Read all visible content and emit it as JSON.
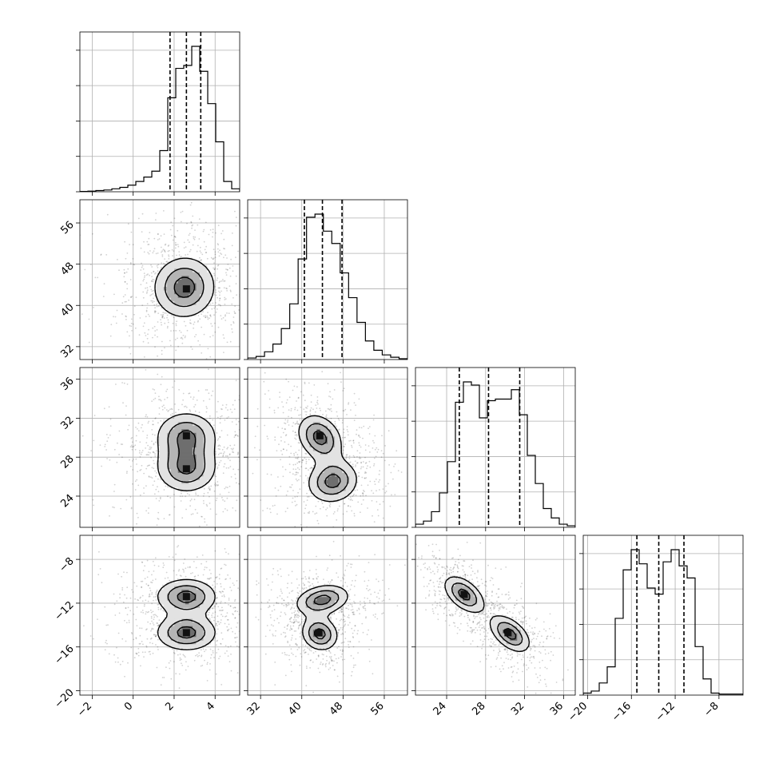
{
  "chart_data": {
    "type": "corner",
    "grid": true,
    "parameters": [
      {
        "id": "p0",
        "range": [
          -2.6,
          5.2
        ],
        "ticks": [
          -2,
          0,
          2,
          4
        ],
        "tick_labels": [
          "−2",
          "0",
          "2",
          "4"
        ],
        "median": 2.6,
        "quantiles": [
          1.8,
          2.6,
          3.3
        ],
        "hist": [
          0.002,
          0.004,
          0.008,
          0.012,
          0.02,
          0.03,
          0.045,
          0.07,
          0.1,
          0.14,
          0.28,
          0.64,
          0.84,
          0.86,
          0.99,
          0.82,
          0.6,
          0.34,
          0.07,
          0.02
        ]
      },
      {
        "id": "p1",
        "range": [
          29.5,
          60.5
        ],
        "ticks": [
          32,
          40,
          48,
          56
        ],
        "tick_labels": [
          "32",
          "40",
          "48",
          "56"
        ],
        "median": 44.0,
        "quantiles": [
          40.5,
          44.0,
          47.8
        ],
        "hist": [
          0.01,
          0.02,
          0.05,
          0.1,
          0.2,
          0.36,
          0.65,
          0.92,
          0.94,
          0.83,
          0.75,
          0.56,
          0.4,
          0.24,
          0.12,
          0.06,
          0.03,
          0.015,
          0.005
        ]
      },
      {
        "id": "p2",
        "range": [
          20.8,
          37.2
        ],
        "ticks": [
          24,
          28,
          32,
          36
        ],
        "tick_labels": [
          "24",
          "28",
          "32",
          "36"
        ],
        "median": 28.3,
        "quantiles": [
          25.3,
          28.3,
          31.5
        ],
        "hist": [
          0.02,
          0.04,
          0.1,
          0.22,
          0.42,
          0.8,
          0.93,
          0.91,
          0.7,
          0.81,
          0.82,
          0.82,
          0.88,
          0.72,
          0.46,
          0.28,
          0.12,
          0.06,
          0.02,
          0.01
        ]
      },
      {
        "id": "p3",
        "range": [
          -20.4,
          -5.8
        ],
        "ticks": [
          -20,
          -16,
          -12,
          -8
        ],
        "tick_labels": [
          "−20",
          "−16",
          "−12",
          "−8"
        ],
        "median": -13.5,
        "quantiles": [
          -15.5,
          -13.5,
          -11.2
        ],
        "hist": [
          0.01,
          0.02,
          0.06,
          0.14,
          0.38,
          0.62,
          0.72,
          0.65,
          0.53,
          0.5,
          0.66,
          0.72,
          0.64,
          0.58,
          0.24,
          0.08,
          0.01,
          0.005,
          0.005,
          0.005
        ]
      }
    ],
    "pairs": [
      {
        "row": 1,
        "col": 0,
        "modes": [
          {
            "x": 2.5,
            "y": 43.5,
            "sx": 0.9,
            "sy": 3.5,
            "rot": 0.6,
            "w": 1
          }
        ],
        "peaks": [
          [
            2.6,
            43.2
          ]
        ],
        "contour_scale": [
          0.55,
          1.05,
          1.6
        ]
      },
      {
        "row": 2,
        "col": 0,
        "modes": [
          {
            "x": 2.6,
            "y": 26.8,
            "sx": 0.9,
            "sy": 1.5,
            "rot": 0,
            "w": 0.5
          },
          {
            "x": 2.6,
            "y": 30.2,
            "sx": 0.9,
            "sy": 1.5,
            "rot": 0,
            "w": 0.5
          }
        ],
        "peaks": [
          [
            2.6,
            30.2
          ],
          [
            2.6,
            26.8
          ]
        ],
        "contour_scale": [
          0.5,
          1.0,
          1.55
        ]
      },
      {
        "row": 2,
        "col": 1,
        "modes": [
          {
            "x": 43.5,
            "y": 30.0,
            "sx": 2.3,
            "sy": 1.6,
            "rot": 0.7,
            "w": 0.5
          },
          {
            "x": 46.0,
            "y": 25.5,
            "sx": 3.0,
            "sy": 1.3,
            "rot": 0.25,
            "w": 0.5
          }
        ],
        "peaks": [
          [
            43.5,
            30.2
          ]
        ],
        "contour_scale": [
          0.5,
          1.0,
          1.55
        ]
      },
      {
        "row": 3,
        "col": 0,
        "modes": [
          {
            "x": 2.6,
            "y": -11.4,
            "sx": 0.9,
            "sy": 1.0,
            "rot": 0,
            "w": 0.5
          },
          {
            "x": 2.6,
            "y": -14.7,
            "sx": 0.9,
            "sy": 1.0,
            "rot": 0,
            "w": 0.5
          }
        ],
        "peaks": [
          [
            2.6,
            -11.4
          ],
          [
            2.6,
            -14.7
          ]
        ],
        "contour_scale": [
          0.5,
          1.0,
          1.55
        ]
      },
      {
        "row": 3,
        "col": 1,
        "modes": [
          {
            "x": 44.0,
            "y": -11.7,
            "sx": 3.2,
            "sy": 0.8,
            "rot": 0.2,
            "w": 0.5
          },
          {
            "x": 43.5,
            "y": -14.8,
            "sx": 2.2,
            "sy": 0.9,
            "rot": -0.5,
            "w": 0.5
          }
        ],
        "peaks": [
          [
            43.3,
            -14.7
          ]
        ],
        "contour_scale": [
          0.5,
          1.0,
          1.55
        ]
      },
      {
        "row": 3,
        "col": 2,
        "modes": [
          {
            "x": 25.8,
            "y": -11.2,
            "sx": 1.5,
            "sy": 0.75,
            "rot": -0.7,
            "w": 0.5
          },
          {
            "x": 30.5,
            "y": -14.8,
            "sx": 1.5,
            "sy": 0.75,
            "rot": -0.7,
            "w": 0.5
          }
        ],
        "peaks": [
          [
            25.8,
            -11.2
          ],
          [
            30.3,
            -14.7
          ]
        ],
        "contour_scale": [
          0.5,
          1.0,
          1.55
        ]
      }
    ]
  }
}
